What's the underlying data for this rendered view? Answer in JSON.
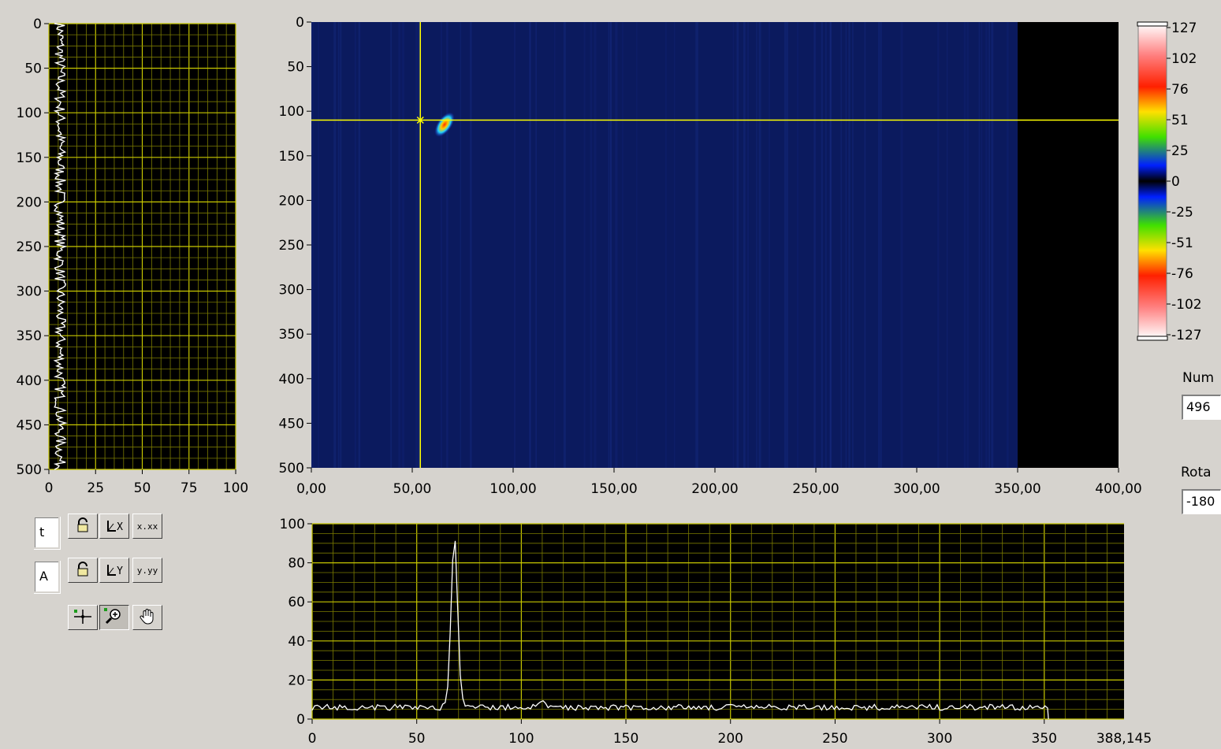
{
  "left_graph": {
    "y_ticks": [
      "0",
      "50",
      "100",
      "150",
      "200",
      "250",
      "300",
      "350",
      "400",
      "450",
      "500"
    ],
    "x_ticks": [
      "0",
      "25",
      "50",
      "75",
      "100"
    ],
    "colors": {
      "background": "#000000",
      "grid": "#c8c800",
      "trace": "#ffffff"
    }
  },
  "intensity_graph": {
    "y_ticks": [
      "0",
      "50",
      "100",
      "150",
      "200",
      "250",
      "300",
      "350",
      "400",
      "450",
      "500"
    ],
    "x_ticks": [
      "0,00",
      "50,00",
      "100,00",
      "150,00",
      "200,00",
      "250,00",
      "300,00",
      "350,00",
      "400,00"
    ],
    "cursor": {
      "x": 54,
      "y": 110
    },
    "hotspot": {
      "x": 66,
      "y": 115
    },
    "data_extent_x": 350,
    "colors": {
      "background": "#0b1a5e",
      "cursor": "#ffff00"
    }
  },
  "colorscale": {
    "labels": [
      "127",
      "102",
      "76",
      "51",
      "25",
      "0",
      "-25",
      "-51",
      "-76",
      "-102",
      "-127"
    ]
  },
  "bottom_graph": {
    "y_ticks": [
      "0",
      "20",
      "40",
      "60",
      "80",
      "100"
    ],
    "x_ticks": [
      "0",
      "50",
      "100",
      "150",
      "200",
      "250",
      "300",
      "350"
    ],
    "x_end_label": "388,145",
    "colors": {
      "background": "#000000",
      "grid": "#c8c800",
      "trace": "#ffffff"
    }
  },
  "chart_data": [
    {
      "type": "line",
      "xlim": [
        0,
        100
      ],
      "ylim": [
        500,
        0
      ],
      "series": [
        {
          "x_level": 6,
          "y": [
            0,
            500
          ]
        }
      ]
    },
    {
      "type": "heatmap",
      "xlim": [
        0,
        400
      ],
      "ylim": [
        500,
        0
      ],
      "peak": {
        "x": 66,
        "y": 115
      },
      "cursor": {
        "x": 54,
        "y": 110
      }
    },
    {
      "type": "line",
      "xlim": [
        0,
        388.145
      ],
      "ylim": [
        0,
        100
      ],
      "series": [
        {
          "baseline": 6,
          "peaks": [
            {
              "x": 68,
              "y": 93
            },
            {
              "x": 110,
              "y": 10
            }
          ],
          "x_end": 352
        }
      ]
    }
  ],
  "palette": {
    "row1": {
      "label": "t",
      "lock_icon": "lock-icon",
      "scale_label": "X",
      "format_label": "x.xx"
    },
    "row2": {
      "label": "A",
      "lock_icon": "lock-icon",
      "scale_label": "Y",
      "format_label": "y.yy"
    },
    "tools": [
      "crosshair-icon",
      "zoom-icon",
      "hand-icon"
    ]
  },
  "controls": {
    "num_label": "Num",
    "num_value": "496",
    "rota_label": "Rota",
    "rota_value": "-180"
  }
}
